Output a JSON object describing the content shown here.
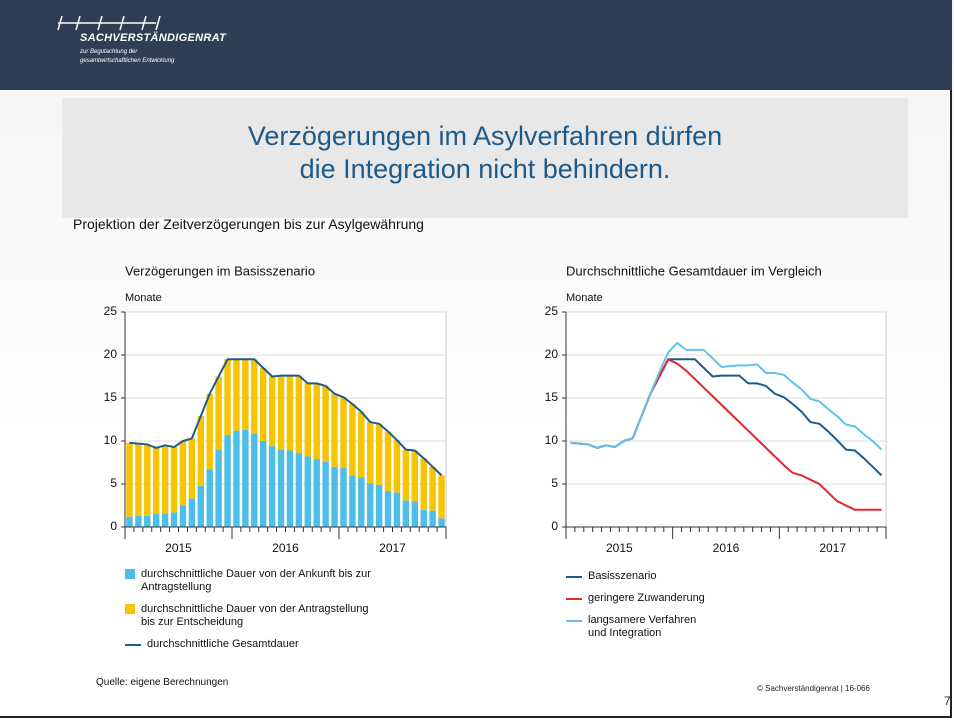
{
  "header": {
    "name": "SACHVERSTÄNDIGENRAT",
    "sub": [
      "zur Begutachtung der",
      "gesamtwirtschaftlichen Entwicklung"
    ]
  },
  "title": [
    "Verzögerungen im Asylverfahren dürfen",
    "die Integration nicht behindern."
  ],
  "subtitle": "Projektion der Zeitverzögerungen bis zur Asylgewährung",
  "chart_data": [
    {
      "type": "bar",
      "stacked": true,
      "title": "Verzögerungen im Basisszenario",
      "y_label": "Monate",
      "categories": [
        null,
        null,
        null,
        null,
        null,
        null,
        null,
        null,
        null,
        null,
        null,
        null,
        null,
        null,
        null,
        null,
        null,
        null,
        null,
        null,
        null,
        null,
        null,
        null,
        null,
        null,
        null,
        null,
        null,
        null,
        null,
        null,
        null,
        null,
        null,
        null
      ],
      "x_groups": [
        "2015",
        "2016",
        "2017"
      ],
      "ylim": [
        0,
        25
      ],
      "yticks": [
        0,
        5,
        10,
        15,
        20,
        25
      ],
      "grid": true,
      "series": [
        {
          "name": "durchschnittliche Dauer von der Ankunft bis zur\nAntragstellung",
          "color": "#4dbde9",
          "values": [
            1.2,
            1.3,
            1.3,
            1.5,
            1.6,
            1.7,
            2.5,
            3.3,
            4.8,
            6.7,
            9.0,
            10.7,
            11.2,
            11.3,
            10.9,
            10.0,
            9.4,
            9.0,
            8.9,
            8.6,
            8.2,
            7.9,
            7.6,
            7.0,
            6.9,
            6.0,
            5.8,
            5.1,
            4.9,
            4.2,
            4.0,
            3.1,
            3.0,
            2.0,
            1.9,
            1.0
          ]
        },
        {
          "name": "durchschnittliche Dauer von der Antragstellung\nbis zur Entscheidung",
          "color": "#f6c400",
          "values": [
            8.6,
            8.4,
            8.3,
            7.7,
            7.9,
            7.6,
            7.5,
            7.0,
            8.1,
            8.8,
            8.5,
            8.8,
            8.3,
            8.2,
            8.6,
            8.5,
            8.1,
            8.6,
            8.7,
            9.0,
            8.5,
            8.8,
            8.8,
            8.5,
            8.2,
            8.3,
            7.6,
            7.1,
            7.1,
            6.9,
            6.1,
            5.9,
            5.9,
            6.0,
            5.1,
            5.0
          ]
        },
        {
          "name": "durchschnittliche Gesamtdauer",
          "color": "#1c5d8d",
          "type": "line",
          "values": [
            9.8,
            9.7,
            9.6,
            9.2,
            9.5,
            9.3,
            10.0,
            10.3,
            12.9,
            15.5,
            17.5,
            19.5,
            19.5,
            19.5,
            19.5,
            18.5,
            17.5,
            17.6,
            17.6,
            17.6,
            16.7,
            16.7,
            16.4,
            15.5,
            15.1,
            14.3,
            13.4,
            12.2,
            12.0,
            11.1,
            10.1,
            9.0,
            8.9,
            8.0,
            7.0,
            6.0
          ]
        }
      ]
    },
    {
      "type": "line",
      "title": "Durchschnittliche Gesamtdauer im Vergleich",
      "y_label": "Monate",
      "categories": [
        null,
        null,
        null,
        null,
        null,
        null,
        null,
        null,
        null,
        null,
        null,
        null,
        null,
        null,
        null,
        null,
        null,
        null,
        null,
        null,
        null,
        null,
        null,
        null,
        null,
        null,
        null,
        null,
        null,
        null,
        null,
        null,
        null,
        null,
        null,
        null
      ],
      "x_groups": [
        "2015",
        "2016",
        "2017"
      ],
      "ylim": [
        0,
        25
      ],
      "yticks": [
        0,
        5,
        10,
        15,
        20,
        25
      ],
      "grid": true,
      "series": [
        {
          "name": "Basisszenario",
          "color": "#1c5d8d",
          "values": [
            9.8,
            9.7,
            9.6,
            9.2,
            9.5,
            9.3,
            10.0,
            10.3,
            12.9,
            15.5,
            17.5,
            19.5,
            19.5,
            19.5,
            19.5,
            18.5,
            17.5,
            17.6,
            17.6,
            17.6,
            16.7,
            16.7,
            16.4,
            15.5,
            15.1,
            14.3,
            13.4,
            12.2,
            12.0,
            11.1,
            10.1,
            9.0,
            8.9,
            8.0,
            7.0,
            6.0
          ]
        },
        {
          "name": "geringere Zuwanderung",
          "color": "#e3262f",
          "values": [
            9.8,
            9.7,
            9.6,
            9.2,
            9.5,
            9.3,
            10.0,
            10.3,
            12.9,
            15.5,
            17.5,
            19.5,
            19.0,
            18.2,
            17.2,
            16.2,
            15.2,
            14.2,
            13.2,
            12.2,
            11.2,
            10.2,
            9.2,
            8.2,
            7.2,
            6.3,
            6.0,
            5.5,
            5.0,
            4.0,
            3.0,
            2.5,
            2.0,
            2.0,
            2.0,
            2.0
          ]
        },
        {
          "name": "langsamere Verfahren\nund Integration",
          "color": "#5fc4ec",
          "values": [
            9.8,
            9.7,
            9.6,
            9.2,
            9.5,
            9.3,
            10.0,
            10.3,
            12.9,
            15.5,
            18.0,
            20.3,
            21.4,
            20.6,
            20.6,
            20.6,
            19.6,
            18.6,
            18.7,
            18.8,
            18.8,
            18.9,
            17.9,
            17.9,
            17.7,
            16.8,
            16.0,
            14.9,
            14.6,
            13.7,
            12.9,
            11.9,
            11.7,
            10.8,
            10.0,
            9.0
          ]
        }
      ]
    }
  ],
  "source": "Quelle: eigene Berechnungen",
  "copyright": "© Sachverständigenrat | 16-066",
  "page_number": "7"
}
